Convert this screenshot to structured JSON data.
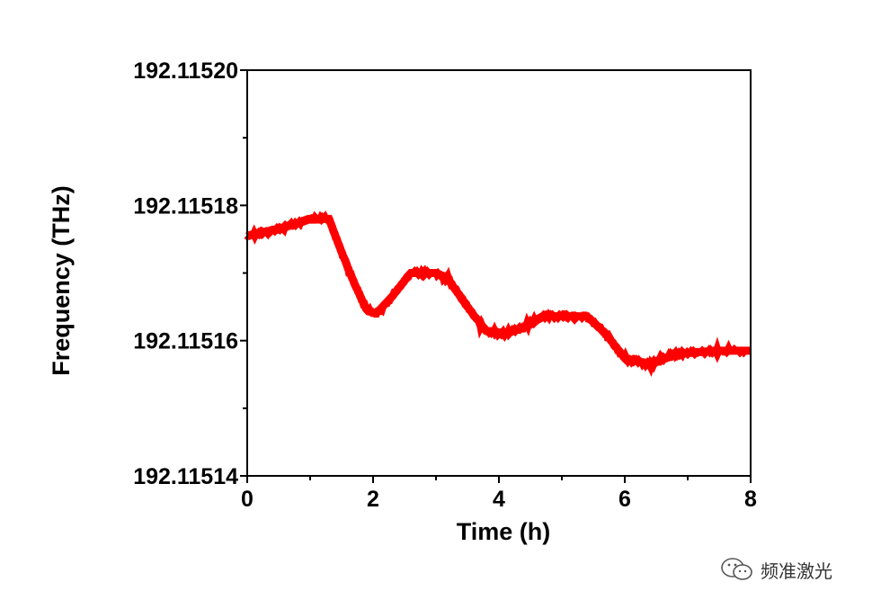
{
  "chart_data": {
    "type": "line",
    "xlabel": "Time (h)",
    "ylabel": "Frequency (THz)",
    "xlim": [
      0,
      8
    ],
    "ylim": [
      192.11514,
      192.1152
    ],
    "xticks": [
      "0",
      "2",
      "4",
      "6",
      "8"
    ],
    "yticks": [
      "192.11514",
      "192.11516",
      "192.11518",
      "192.11520"
    ],
    "grid": false,
    "series": [
      {
        "color": "#ff0000",
        "x": [
          0,
          0.5,
          1.0,
          1.3,
          1.5,
          1.7,
          1.9,
          2.05,
          2.3,
          2.6,
          3.0,
          3.2,
          3.5,
          3.8,
          4.1,
          4.4,
          4.7,
          5.0,
          5.4,
          5.7,
          6.0,
          6.4,
          6.8,
          7.5,
          8.0
        ],
        "y": [
          192.1151755,
          192.1151765,
          192.115178,
          192.115178,
          192.1151731,
          192.1151685,
          192.1151645,
          192.115164,
          192.1151665,
          192.11517,
          192.11517,
          192.115169,
          192.115165,
          192.1151614,
          192.115161,
          192.115162,
          192.1151636,
          192.1151636,
          192.1151636,
          192.115161,
          192.1151574,
          192.1151565,
          192.115158,
          192.1151585,
          192.1151585
        ]
      }
    ]
  },
  "watermark": {
    "text": "频准激光",
    "icon": "wechat-icon"
  }
}
